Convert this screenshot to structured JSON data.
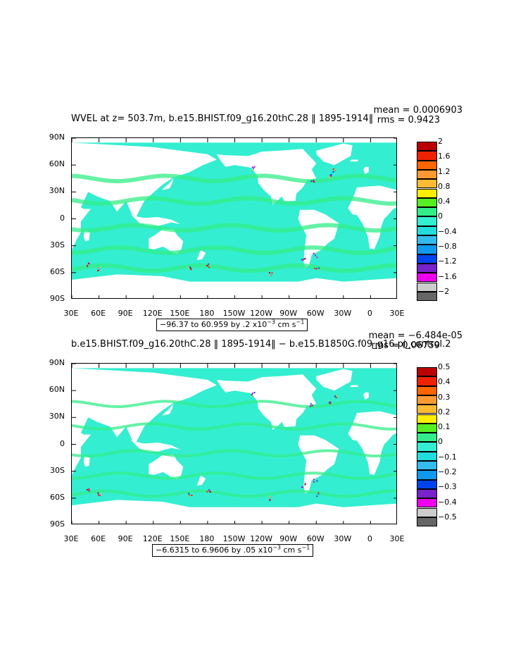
{
  "panels": [
    {
      "title": "WVEL at z= 503.7m, b.e15.BHIST.f09_g16.20thC.28 ‖ 1895-1914‖",
      "mean": "mean = 0.0006903",
      "rms": "rms = 0.9423",
      "range_text": "−96.37 to 60.959 by .2 x10",
      "range_exp": "−3",
      "range_unit": " cm s",
      "range_unit_exp": "−1",
      "colorbar_labels": [
        "2",
        "1.6",
        "1.2",
        "0.8",
        "0.4",
        "0",
        "−0.4",
        "−0.8",
        "−1.2",
        "−1.6",
        "−2"
      ]
    },
    {
      "title": "b.e15.BHIST.f09_g16.20thC.28 ‖ 1895-1914‖ − b.e15.B1850G.f09_g16.pi_control.2",
      "mean": "mean = −6.484e-05",
      "rms": "rms = 0.06759",
      "range_text": "−6.6315 to 6.9606 by .05 x10",
      "range_exp": "−3",
      "range_unit": " cm s",
      "range_unit_exp": "−1",
      "colorbar_labels": [
        "0.5",
        "0.4",
        "0.3",
        "0.2",
        "0.1",
        "0",
        "−0.1",
        "−0.2",
        "−0.3",
        "−0.4",
        "−0.5"
      ]
    }
  ],
  "axes": {
    "y_ticks": [
      "90N",
      "60N",
      "30N",
      "0",
      "30S",
      "60S",
      "90S"
    ],
    "x_ticks": [
      "30E",
      "60E",
      "90E",
      "120E",
      "150E",
      "180",
      "150W",
      "120W",
      "90W",
      "60W",
      "30W",
      "0",
      "30E"
    ]
  },
  "colors": {
    "ocean_base": "#33eed0",
    "colorbar": [
      "#bb0000",
      "#ee2200",
      "#ff6600",
      "#ff9933",
      "#ffbb33",
      "#ffee00",
      "#55ee22",
      "#33ee88",
      "#33eed0",
      "#22dddd",
      "#33bbee",
      "#1199ee",
      "#0044ee",
      "#7722cc",
      "#ee00ee",
      "#cccccc",
      "#666666"
    ]
  },
  "chart_data": [
    {
      "type": "heatmap",
      "title": "WVEL at z= 503.7m, b.e15.BHIST.f09_g16.20thC.28 ‖ 1895-1914‖",
      "mean": 0.0006903,
      "rms": 0.9423,
      "data_min": -96.37,
      "data_max": 60.959,
      "contour_interval": 0.2,
      "units": "x10^-3 cm s^-1",
      "x": "longitude 30E to 30E (390 degrees)",
      "y": "latitude 90S to 90N",
      "xlim": [
        30,
        390
      ],
      "ylim": [
        -90,
        90
      ],
      "levels": [
        -2,
        -1.6,
        -1.2,
        -0.8,
        -0.4,
        0,
        0.4,
        0.8,
        1.2,
        1.6,
        2
      ]
    },
    {
      "type": "heatmap",
      "title": "b.e15.BHIST.f09_g16.20thC.28 ‖ 1895-1914‖ − b.e15.B1850G.f09_g16.pi_control.2",
      "mean": -6.484e-05,
      "rms": 0.06759,
      "data_min": -6.6315,
      "data_max": 6.9606,
      "contour_interval": 0.05,
      "units": "x10^-3 cm s^-1",
      "x": "longitude 30E to 30E (390 degrees)",
      "y": "latitude 90S to 90N",
      "xlim": [
        30,
        390
      ],
      "ylim": [
        -90,
        90
      ],
      "levels": [
        -0.5,
        -0.4,
        -0.3,
        -0.2,
        -0.1,
        0,
        0.1,
        0.2,
        0.3,
        0.4,
        0.5
      ]
    }
  ]
}
